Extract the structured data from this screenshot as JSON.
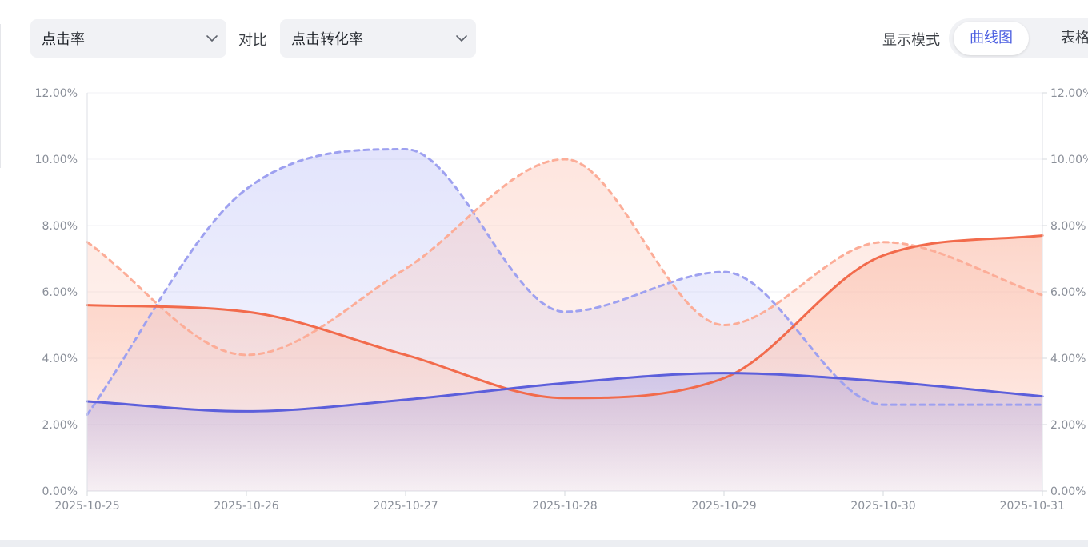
{
  "toolbar": {
    "metric_select": {
      "value": "点击率",
      "icon": "chevron-down-icon"
    },
    "compare_label": "对比",
    "compare_select": {
      "value": "点击转化率",
      "icon": "chevron-down-icon"
    },
    "display_mode_label": "显示模式",
    "mode_tabs": [
      {
        "label": "曲线图",
        "active": true
      },
      {
        "label": "表格",
        "active": false
      }
    ]
  },
  "colors": {
    "current_ctr": "#f26b4c",
    "current_conv": "#5c5fdb",
    "previous_ctr": "#fcad98",
    "previous_conv": "#9ea1f0",
    "active_tab": "#4a5de0"
  },
  "chart_data": {
    "type": "area",
    "x": [
      "2025-10-25",
      "2025-10-26",
      "2025-10-27",
      "2025-10-28",
      "2025-10-29",
      "2025-10-30",
      "2025-10-31"
    ],
    "y_left": {
      "ylim": [
        0,
        12
      ],
      "ticks": [
        "0.00%",
        "2.00%",
        "4.00%",
        "6.00%",
        "8.00%",
        "10.00%",
        "12.00%"
      ]
    },
    "y_right": {
      "ylim": [
        0,
        12
      ],
      "ticks": [
        "0.00%",
        "2.00%",
        "4.00%",
        "6.00%",
        "8.00%",
        "10.00%",
        "12.00%"
      ]
    },
    "grid": true,
    "series": [
      {
        "key": "prev_conv",
        "style": "dashed",
        "values": [
          2.3,
          9.1,
          10.3,
          5.4,
          6.6,
          2.6,
          2.6
        ]
      },
      {
        "key": "prev_ctr",
        "style": "dashed",
        "values": [
          7.5,
          4.1,
          6.7,
          10.0,
          5.0,
          7.5,
          5.9
        ]
      },
      {
        "key": "cur_ctr",
        "style": "solid",
        "values": [
          5.6,
          5.4,
          4.1,
          2.8,
          3.4,
          7.1,
          7.7
        ]
      },
      {
        "key": "cur_conv",
        "style": "solid",
        "values": [
          2.7,
          2.4,
          2.75,
          3.25,
          3.55,
          3.3,
          2.85
        ]
      }
    ]
  }
}
